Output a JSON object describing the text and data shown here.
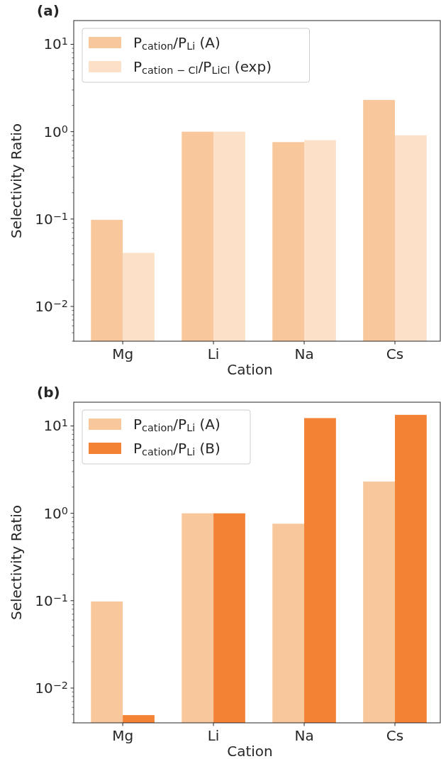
{
  "chart_data": [
    {
      "type": "bar",
      "title": "(a)",
      "xlabel": "Cation",
      "ylabel": "Selectivity Ratio",
      "categories": [
        "Mg",
        "Li",
        "Na",
        "Cs"
      ],
      "log": true,
      "legend": "top left",
      "ylim": [
        0.004,
        18.7
      ],
      "yticks": [
        {
          "value": 0.01,
          "label": "10$^{−2}$"
        },
        {
          "value": 0.1,
          "label": "10$^{−1}$"
        },
        {
          "value": 1,
          "label": "10$^{0}$"
        },
        {
          "value": 10,
          "label": "10$^{1}$"
        },
        {
          "value": 0.004,
          "label": null
        },
        {
          "value": 0.005,
          "label": null
        },
        {
          "value": 0.006,
          "label": null
        },
        {
          "value": 0.007,
          "label": null
        },
        {
          "value": 0.008,
          "label": null
        },
        {
          "value": 0.009,
          "label": null
        },
        {
          "value": 0.02,
          "label": null
        },
        {
          "value": 0.03,
          "label": null
        },
        {
          "value": 0.04,
          "label": null
        },
        {
          "value": 0.05,
          "label": null
        },
        {
          "value": 0.06,
          "label": null
        },
        {
          "value": 0.07,
          "label": null
        },
        {
          "value": 0.08,
          "label": null
        },
        {
          "value": 0.09,
          "label": null
        },
        {
          "value": 0.2,
          "label": null
        },
        {
          "value": 0.3,
          "label": null
        },
        {
          "value": 0.4,
          "label": null
        },
        {
          "value": 0.5,
          "label": null
        },
        {
          "value": 0.6,
          "label": null
        },
        {
          "value": 0.7,
          "label": null
        },
        {
          "value": 0.8,
          "label": null
        },
        {
          "value": 0.9,
          "label": null
        },
        {
          "value": 2,
          "label": null
        },
        {
          "value": 3,
          "label": null
        },
        {
          "value": 4,
          "label": null
        },
        {
          "value": 5,
          "label": null
        },
        {
          "value": 6,
          "label": null
        },
        {
          "value": 7,
          "label": null
        },
        {
          "value": 8,
          "label": null
        },
        {
          "value": 9,
          "label": null
        }
      ],
      "series": [
        {
          "name": "P$_{cation}$/P$_{Li}$ (A)",
          "color": "#f9c79c",
          "values": [
            0.098,
            1,
            0.76,
            2.31
          ]
        },
        {
          "name": "P$_{cation − Cl}$/P$_{LiCl}$ (exp)",
          "color": "#fce0c8",
          "values": [
            0.041,
            1,
            0.8,
            0.91
          ]
        }
      ]
    },
    {
      "type": "bar",
      "title": "(b)",
      "xlabel": "Cation",
      "ylabel": "Selectivity Ratio",
      "categories": [
        "Mg",
        "Li",
        "Na",
        "Cs"
      ],
      "log": true,
      "legend": "top left",
      "ylim": [
        0.004,
        18.7
      ],
      "yticks": [
        {
          "value": 0.01,
          "label": "10$^{−2}$"
        },
        {
          "value": 0.1,
          "label": "10$^{−1}$"
        },
        {
          "value": 1,
          "label": "10$^{0}$"
        },
        {
          "value": 10,
          "label": "10$^{1}$"
        },
        {
          "value": 0.004,
          "label": null
        },
        {
          "value": 0.005,
          "label": null
        },
        {
          "value": 0.006,
          "label": null
        },
        {
          "value": 0.007,
          "label": null
        },
        {
          "value": 0.008,
          "label": null
        },
        {
          "value": 0.009,
          "label": null
        },
        {
          "value": 0.02,
          "label": null
        },
        {
          "value": 0.03,
          "label": null
        },
        {
          "value": 0.04,
          "label": null
        },
        {
          "value": 0.05,
          "label": null
        },
        {
          "value": 0.06,
          "label": null
        },
        {
          "value": 0.07,
          "label": null
        },
        {
          "value": 0.08,
          "label": null
        },
        {
          "value": 0.09,
          "label": null
        },
        {
          "value": 0.2,
          "label": null
        },
        {
          "value": 0.3,
          "label": null
        },
        {
          "value": 0.4,
          "label": null
        },
        {
          "value": 0.5,
          "label": null
        },
        {
          "value": 0.6,
          "label": null
        },
        {
          "value": 0.7,
          "label": null
        },
        {
          "value": 0.8,
          "label": null
        },
        {
          "value": 0.9,
          "label": null
        },
        {
          "value": 2,
          "label": null
        },
        {
          "value": 3,
          "label": null
        },
        {
          "value": 4,
          "label": null
        },
        {
          "value": 5,
          "label": null
        },
        {
          "value": 6,
          "label": null
        },
        {
          "value": 7,
          "label": null
        },
        {
          "value": 8,
          "label": null
        },
        {
          "value": 9,
          "label": null
        }
      ],
      "series": [
        {
          "name": "P$_{cation}$/P$_{Li}$ (A)",
          "color": "#f9c79c",
          "values": [
            0.098,
            1,
            0.76,
            2.31
          ]
        },
        {
          "name": "P$_{cation}$/P$_{Li}$ (B)",
          "color": "#f38235",
          "values": [
            0.0049,
            1,
            12.3,
            13.4
          ]
        }
      ]
    }
  ]
}
